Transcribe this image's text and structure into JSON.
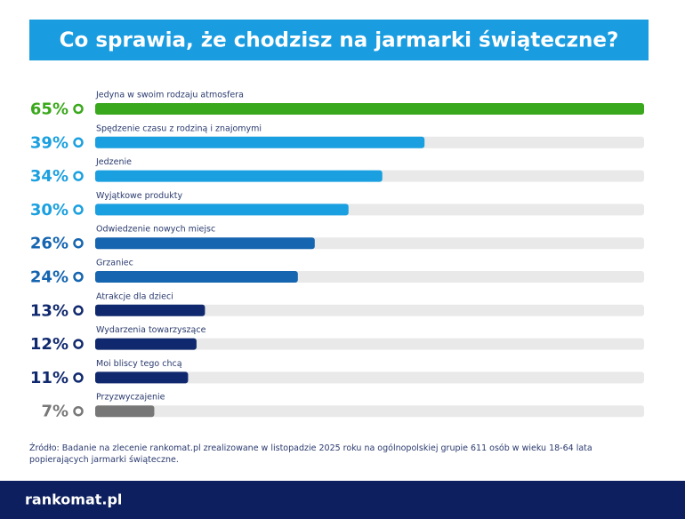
{
  "chart_data": {
    "type": "hbar",
    "title": "Co sprawia, że chodzisz na jarmarki świąteczne?",
    "categories": [
      "Jedyna w swoim rodzaju atmosfera",
      "Spędzenie czasu z rodziną i znajomymi",
      "Jedzenie",
      "Wyjątkowe produkty",
      "Odwiedzenie nowych miejsc",
      "Grzaniec",
      "Atrakcje dla dzieci",
      "Wydarzenia towarzyszące",
      "Moi bliscy tego chcą",
      "Przyzwyczajenie"
    ],
    "values": [
      65,
      39,
      34,
      30,
      26,
      24,
      13,
      12,
      11,
      7
    ],
    "value_labels": [
      "65%",
      "39%",
      "34%",
      "30%",
      "26%",
      "24%",
      "13%",
      "12%",
      "11%",
      "7%"
    ],
    "colors": [
      "#3aa81c",
      "#1aa0e0",
      "#1aa0e0",
      "#1aa0e0",
      "#1565b0",
      "#1565b0",
      "#10296e",
      "#10296e",
      "#10296e",
      "#777777"
    ],
    "xlim": [
      0,
      65
    ]
  },
  "source": "Źródło: Badanie na zlecenie rankomat.pl zrealizowane w listopadzie 2025 roku na ogólnopolskiej grupie 611 osób w wieku 18-64 lata popierających jarmarki świąteczne.",
  "logo": "rankomat.pl"
}
